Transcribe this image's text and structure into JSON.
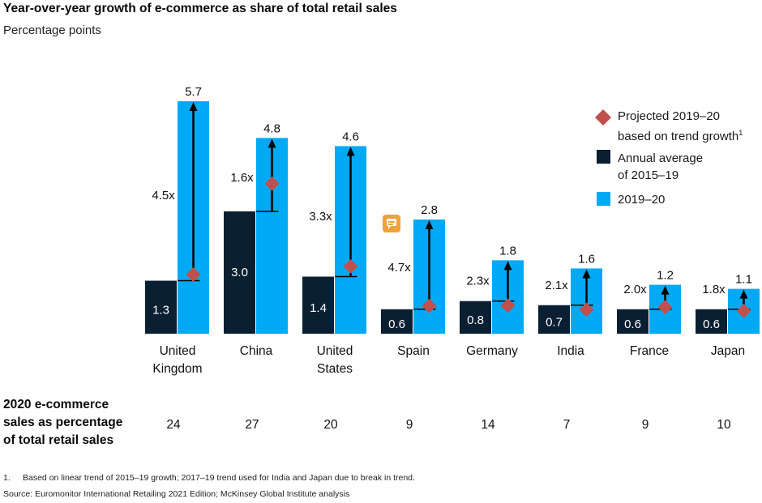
{
  "title": "Year-over-year growth of e-commerce as share of total retail sales",
  "subtitle": "Percentage points",
  "legend": {
    "projected_line1": "Projected 2019–20",
    "projected_line2": "based on trend growth",
    "projected_sup": "1",
    "annual_line1": "Annual average",
    "annual_line2": "of 2015–19",
    "current": "2019–20"
  },
  "colors": {
    "annual": "#0b1f33",
    "current": "#00a9f4",
    "projected": "#c0504d",
    "arrow": "#000000"
  },
  "row_label": [
    "2020 e-commerce",
    "sales as percentage",
    "of total retail sales"
  ],
  "footnote_num": "1.",
  "footnote": "Based on linear trend of 2015–19 growth; 2017–19 trend used for India and Japan due to break in trend.",
  "source": "Source: Euromonitor International Retailing 2021 Edition; McKinsey Global Institute analysis",
  "comment_icon": "comment-icon",
  "chart_data": {
    "type": "bar",
    "categories": [
      [
        "United",
        "Kingdom"
      ],
      [
        "China"
      ],
      [
        "United",
        "States"
      ],
      [
        "Spain"
      ],
      [
        "Germany"
      ],
      [
        "India"
      ],
      [
        "France"
      ],
      [
        "Japan"
      ]
    ],
    "series": [
      {
        "name": "Annual average of 2015–19",
        "values": [
          1.3,
          3.0,
          1.4,
          0.6,
          0.8,
          0.7,
          0.6,
          0.6
        ]
      },
      {
        "name": "2019–20",
        "values": [
          5.7,
          4.8,
          4.6,
          2.8,
          1.8,
          1.6,
          1.2,
          1.1
        ]
      },
      {
        "name": "Projected 2019–20 based on trend growth",
        "values": [
          1.45,
          3.68,
          1.65,
          0.68,
          0.69,
          0.59,
          0.65,
          0.56
        ]
      }
    ],
    "multipliers": [
      "4.5x",
      "1.6x",
      "3.3x",
      "4.7x",
      "2.3x",
      "2.1x",
      "2.0x",
      "1.8x"
    ],
    "ecommerce_share_2020": [
      "24",
      "27",
      "20",
      "9",
      "14",
      "7",
      "9",
      "10"
    ],
    "ylim": [
      0,
      5.7
    ],
    "grid": false,
    "legend_position": "right"
  }
}
